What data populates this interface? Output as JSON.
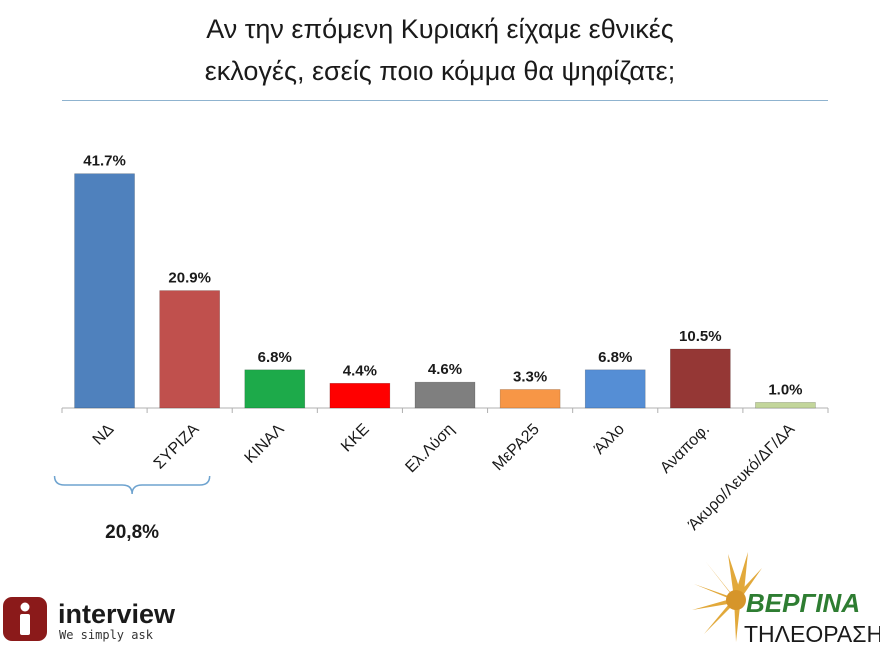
{
  "title_line1": "Αν την επόμενη Κυριακή είχαμε εθνικές",
  "title_line2": "εκλογές, εσείς ποιο κόμμα θα ψηφίζατε;",
  "chart_data": {
    "type": "bar",
    "categories": [
      "ΝΔ",
      "ΣΥΡΙΖΑ",
      "ΚΙΝΑΛ",
      "ΚΚΕ",
      "Ελ.Λύση",
      "ΜεΡΑ25",
      "Άλλο",
      "Αναποφ.",
      "Άκυρο/Λευκό/ΔΓ/ΔΑ"
    ],
    "values": [
      41.7,
      20.9,
      6.8,
      4.4,
      4.6,
      3.3,
      6.8,
      10.5,
      1.0
    ],
    "data_labels": [
      "41.7%",
      "20.9%",
      "6.8%",
      "4.4%",
      "4.6%",
      "3.3%",
      "6.8%",
      "10.5%",
      "1.0%"
    ],
    "colors": [
      "#4f81bd",
      "#c0504d",
      "#1daa4a",
      "#ff0000",
      "#7f7f7f",
      "#f79646",
      "#558ed5",
      "#953735",
      "#c3d69b"
    ],
    "title": "Αν την επόμενη Κυριακή είχαμε εθνικές εκλογές, εσείς ποιο κόμμα θα ψηφίζατε;",
    "xlabel": "",
    "ylabel": "",
    "ylim": [
      0,
      42
    ],
    "grid": false,
    "legend": "none",
    "annotation": {
      "text": "20,8%",
      "from_category": "ΝΔ",
      "to_category": "ΣΥΡΙΖΑ"
    }
  },
  "logos": {
    "interview_name": "interview",
    "interview_tagline": "We simply ask",
    "vergina_name": "ΒΕΡΓΙΝΑ",
    "vergina_sub": "ΤΗΛΕΟΡΑΣΗ"
  }
}
